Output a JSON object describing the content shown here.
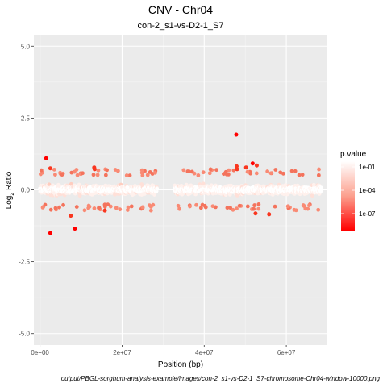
{
  "chart_data": {
    "type": "scatter",
    "title": "CNV - Chr04",
    "subtitle": "con-2_s1-vs-D2-1_S7",
    "xlabel": "Position (bp)",
    "ylabel_main": "Log",
    "ylabel_sub": "2",
    "ylabel_tail": " Ratio",
    "xlim": [
      -1500000,
      70000000
    ],
    "ylim": [
      -5.4,
      5.4
    ],
    "x_ticks": [
      0,
      20000000,
      40000000,
      60000000
    ],
    "x_tick_labels": [
      "0e+00",
      "2e+07",
      "4e+07",
      "6e+07"
    ],
    "y_ticks": [
      5.0,
      2.5,
      0.0,
      -2.5,
      -5.0
    ],
    "y_tick_labels": [
      "5.0",
      "2.5",
      "0.0",
      "-2.5",
      "-5.0"
    ],
    "grid": true,
    "legend": {
      "title": "p.value",
      "placement": "right",
      "labels": [
        "1e-01",
        "1e-04",
        "1e-07"
      ],
      "colors": [
        "#ffffff",
        "#fca08e",
        "#ff0000"
      ]
    },
    "segments": [
      {
        "x_start": 0,
        "x_end": 28500000
      },
      {
        "x_start": 32800000,
        "x_end": 68500000
      }
    ],
    "outliers": [
      {
        "x": 1500000,
        "y": 1.1,
        "p": "1e-07"
      },
      {
        "x": 2500000,
        "y": 0.75,
        "p": "1e-06"
      },
      {
        "x": 2500000,
        "y": -1.5,
        "p": "1e-07"
      },
      {
        "x": 7500000,
        "y": -0.9,
        "p": "1e-06"
      },
      {
        "x": 8500000,
        "y": -1.35,
        "p": "1e-07"
      },
      {
        "x": 13200000,
        "y": 0.78,
        "p": "1e-06"
      },
      {
        "x": 13300000,
        "y": 0.72,
        "p": "1e-06"
      },
      {
        "x": 15800000,
        "y": -0.72,
        "p": "1e-06"
      },
      {
        "x": 47800000,
        "y": 1.92,
        "p": "1e-07"
      },
      {
        "x": 47900000,
        "y": 0.82,
        "p": "1e-06"
      },
      {
        "x": 48000000,
        "y": 0.72,
        "p": "1e-06"
      },
      {
        "x": 50200000,
        "y": 0.78,
        "p": "1e-06"
      },
      {
        "x": 51800000,
        "y": 0.92,
        "p": "1e-07"
      },
      {
        "x": 52800000,
        "y": 0.85,
        "p": "1e-06"
      },
      {
        "x": 52500000,
        "y": -0.82,
        "p": "1e-06"
      },
      {
        "x": 55800000,
        "y": -0.85,
        "p": "1e-06"
      }
    ]
  },
  "caption": "output/PBGL-sorghum-analysis-example/images/con-2_s1-vs-D2-1_S7-chromosome-Chr04-window-10000.png"
}
